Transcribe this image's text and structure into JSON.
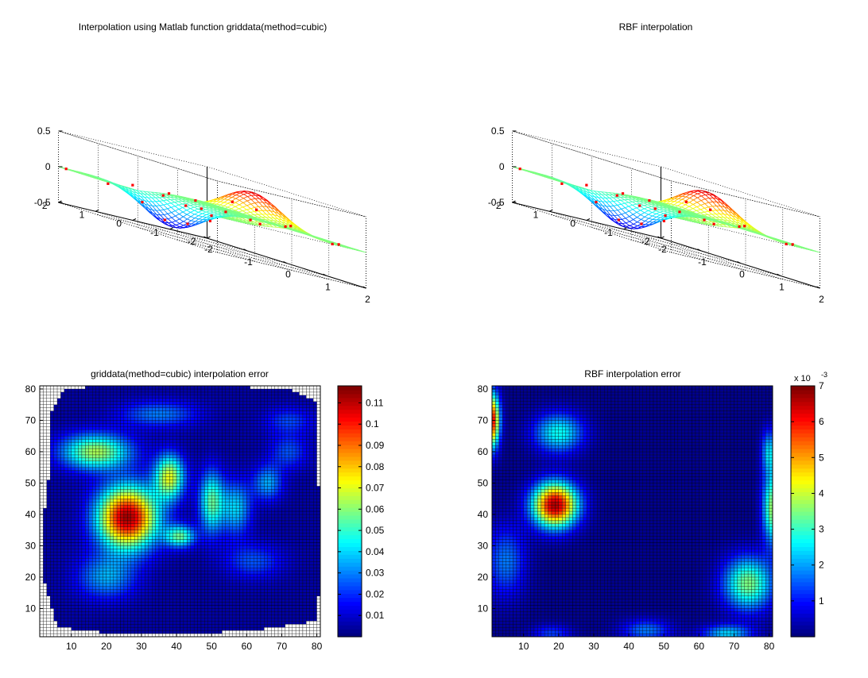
{
  "figure": {
    "background": "#ffffff",
    "colormap": "jet"
  },
  "chart_data": [
    {
      "id": "surf-cubic",
      "type": "surface3d",
      "title": "Interpolation using Matlab function griddata(method=cubic)",
      "x_ticks": [
        "-2",
        "-1",
        "0",
        "1",
        "2"
      ],
      "y_ticks": [
        "-2",
        "-1",
        "0",
        "1",
        "2"
      ],
      "z_ticks": [
        "-0.5",
        "0",
        "0.5"
      ],
      "xlim": [
        -2,
        2
      ],
      "ylim": [
        -2,
        2
      ],
      "zlim": [
        -0.5,
        0.5
      ],
      "grid": true,
      "function": "peak-valley",
      "peak": {
        "x": 1.0,
        "y": 0.0,
        "z": 0.42
      },
      "valley": {
        "x": -1.0,
        "y": 0.0,
        "z": -0.42
      },
      "sample_marker_color": "#ff0000",
      "samples": [
        {
          "x": -1.9,
          "y": 1.9,
          "z": 0.0
        },
        {
          "x": -1.5,
          "y": 1.2,
          "z": -0.05
        },
        {
          "x": -1.2,
          "y": 0.6,
          "z": -0.18
        },
        {
          "x": -0.6,
          "y": 1.5,
          "z": 0.05
        },
        {
          "x": -0.3,
          "y": 1.0,
          "z": 0.02
        },
        {
          "x": 0.5,
          "y": 1.7,
          "z": 0.1
        },
        {
          "x": 0.9,
          "y": 0.6,
          "z": 0.05
        },
        {
          "x": 1.3,
          "y": 0.2,
          "z": 0.2
        },
        {
          "x": 1.6,
          "y": -0.4,
          "z": 0.1
        },
        {
          "x": 1.0,
          "y": -0.9,
          "z": 0.05
        },
        {
          "x": 0.4,
          "y": -0.6,
          "z": 0.0
        },
        {
          "x": -0.3,
          "y": -0.3,
          "z": -0.1
        },
        {
          "x": -0.8,
          "y": -0.8,
          "z": -0.2
        },
        {
          "x": -1.1,
          "y": 0.1,
          "z": -0.35
        },
        {
          "x": -0.9,
          "y": -0.3,
          "z": -0.32
        },
        {
          "x": 0.1,
          "y": 0.4,
          "z": -0.02
        },
        {
          "x": 1.9,
          "y": -1.2,
          "z": 0.0
        },
        {
          "x": 1.5,
          "y": -1.8,
          "z": 0.0
        },
        {
          "x": 0.7,
          "y": 1.2,
          "z": 0.1
        },
        {
          "x": -0.2,
          "y": -1.5,
          "z": -0.05
        },
        {
          "x": 0.6,
          "y": 0.1,
          "z": 0.2
        },
        {
          "x": -1.6,
          "y": -1.0,
          "z": -0.1
        }
      ]
    },
    {
      "id": "surf-rbf",
      "type": "surface3d",
      "title": "RBF interpolation",
      "x_ticks": [
        "-2",
        "-1",
        "0",
        "1",
        "2"
      ],
      "y_ticks": [
        "-2",
        "-1",
        "0",
        "1",
        "2"
      ],
      "z_ticks": [
        "-0.5",
        "0",
        "0.5"
      ],
      "xlim": [
        -2,
        2
      ],
      "ylim": [
        -2,
        2
      ],
      "zlim": [
        -0.5,
        0.5
      ],
      "grid": true,
      "function": "peak-valley",
      "peak": {
        "x": 1.0,
        "y": 0.0,
        "z": 0.43
      },
      "valley": {
        "x": -1.0,
        "y": 0.0,
        "z": -0.43
      },
      "sample_marker_color": "#ff0000",
      "samples": [
        {
          "x": -1.9,
          "y": 1.9,
          "z": 0.0
        },
        {
          "x": -1.5,
          "y": 1.2,
          "z": -0.05
        },
        {
          "x": -1.2,
          "y": 0.6,
          "z": -0.18
        },
        {
          "x": -0.6,
          "y": 1.5,
          "z": 0.05
        },
        {
          "x": -0.3,
          "y": 1.0,
          "z": 0.02
        },
        {
          "x": 0.5,
          "y": 1.7,
          "z": 0.1
        },
        {
          "x": 0.9,
          "y": 0.6,
          "z": 0.05
        },
        {
          "x": 1.3,
          "y": 0.2,
          "z": 0.2
        },
        {
          "x": 1.6,
          "y": -0.4,
          "z": 0.1
        },
        {
          "x": 1.0,
          "y": -0.9,
          "z": 0.05
        },
        {
          "x": 0.4,
          "y": -0.6,
          "z": 0.0
        },
        {
          "x": -0.3,
          "y": -0.3,
          "z": -0.1
        },
        {
          "x": -0.8,
          "y": -0.8,
          "z": -0.2
        },
        {
          "x": -1.1,
          "y": 0.1,
          "z": -0.35
        },
        {
          "x": -0.9,
          "y": -0.3,
          "z": -0.32
        },
        {
          "x": 0.1,
          "y": 0.4,
          "z": -0.02
        },
        {
          "x": 1.9,
          "y": -1.2,
          "z": 0.0
        },
        {
          "x": 1.5,
          "y": -1.8,
          "z": 0.0
        },
        {
          "x": 0.7,
          "y": 1.2,
          "z": 0.1
        },
        {
          "x": -0.2,
          "y": -1.5,
          "z": -0.05
        },
        {
          "x": 0.6,
          "y": 0.1,
          "z": 0.2
        },
        {
          "x": -1.6,
          "y": -1.0,
          "z": -0.1
        }
      ]
    },
    {
      "id": "heat-cubic",
      "type": "heatmap",
      "title": "griddata(method=cubic) interpolation error",
      "grid_n": 81,
      "xlim": [
        1,
        81
      ],
      "ylim": [
        1,
        81
      ],
      "x_ticks": [
        "10",
        "20",
        "30",
        "40",
        "50",
        "60",
        "70",
        "80"
      ],
      "y_ticks": [
        "10",
        "20",
        "30",
        "40",
        "50",
        "60",
        "70",
        "80"
      ],
      "clim": [
        0,
        0.118
      ],
      "colorbar_ticks": [
        "0.01",
        "0.02",
        "0.03",
        "0.04",
        "0.05",
        "0.06",
        "0.07",
        "0.08",
        "0.09",
        "0.1",
        "0.11"
      ],
      "colorbar_exponent": null,
      "nan_outside_hull": true,
      "hull": [
        [
          6,
          4
        ],
        [
          22,
          2
        ],
        [
          45,
          2
        ],
        [
          62,
          3
        ],
        [
          80,
          6
        ],
        [
          81,
          22
        ],
        [
          80,
          76
        ],
        [
          72,
          80
        ],
        [
          50,
          81
        ],
        [
          20,
          81
        ],
        [
          8,
          80
        ],
        [
          4,
          72
        ],
        [
          4,
          55
        ],
        [
          2,
          38
        ],
        [
          2,
          20
        ]
      ],
      "blobs": [
        {
          "cx": 26,
          "cy": 39,
          "sx": 6,
          "sy": 7,
          "amp": 0.11
        },
        {
          "cx": 17,
          "cy": 60,
          "sx": 7,
          "sy": 4,
          "amp": 0.06
        },
        {
          "cx": 38,
          "cy": 52,
          "sx": 3,
          "sy": 5,
          "amp": 0.065
        },
        {
          "cx": 50,
          "cy": 44,
          "sx": 2.5,
          "sy": 7,
          "amp": 0.05
        },
        {
          "cx": 41,
          "cy": 33,
          "sx": 3,
          "sy": 2.5,
          "amp": 0.05
        },
        {
          "cx": 57,
          "cy": 42,
          "sx": 3,
          "sy": 6,
          "amp": 0.035
        },
        {
          "cx": 66,
          "cy": 50,
          "sx": 3,
          "sy": 4,
          "amp": 0.03
        },
        {
          "cx": 72,
          "cy": 60,
          "sx": 4,
          "sy": 4,
          "amp": 0.02
        },
        {
          "cx": 35,
          "cy": 72,
          "sx": 8,
          "sy": 3,
          "amp": 0.025
        },
        {
          "cx": 62,
          "cy": 25,
          "sx": 6,
          "sy": 4,
          "amp": 0.02
        },
        {
          "cx": 20,
          "cy": 20,
          "sx": 6,
          "sy": 5,
          "amp": 0.03
        },
        {
          "cx": 72,
          "cy": 70,
          "sx": 5,
          "sy": 3,
          "amp": 0.018
        }
      ],
      "base": 0.004
    },
    {
      "id": "heat-rbf",
      "type": "heatmap",
      "title": "RBF interpolation error",
      "grid_n": 81,
      "xlim": [
        1,
        81
      ],
      "ylim": [
        1,
        81
      ],
      "x_ticks": [
        "10",
        "20",
        "30",
        "40",
        "50",
        "60",
        "70",
        "80"
      ],
      "y_ticks": [
        "10",
        "20",
        "30",
        "40",
        "50",
        "60",
        "70",
        "80"
      ],
      "clim": [
        0,
        7
      ],
      "colorbar_ticks": [
        "1",
        "2",
        "3",
        "4",
        "5",
        "6",
        "7"
      ],
      "colorbar_exponent": {
        "base": "x 10",
        "exp": "-3"
      },
      "nan_outside_hull": false,
      "hull": [],
      "blobs": [
        {
          "cx": 19,
          "cy": 43,
          "sx": 4.5,
          "sy": 5,
          "amp": 6.6
        },
        {
          "cx": 1,
          "cy": 70,
          "sx": 1.5,
          "sy": 6,
          "amp": 6.2
        },
        {
          "cx": 20,
          "cy": 66,
          "sx": 5,
          "sy": 4.5,
          "amp": 2.6
        },
        {
          "cx": 74,
          "cy": 18,
          "sx": 5,
          "sy": 6,
          "amp": 3.4
        },
        {
          "cx": 81,
          "cy": 42,
          "sx": 2,
          "sy": 8,
          "amp": 3.6
        },
        {
          "cx": 80,
          "cy": 60,
          "sx": 1.5,
          "sy": 5,
          "amp": 2.2
        },
        {
          "cx": 45,
          "cy": 3,
          "sx": 5,
          "sy": 2.5,
          "amp": 1.6
        },
        {
          "cx": 68,
          "cy": 2,
          "sx": 5,
          "sy": 2,
          "amp": 2.2
        },
        {
          "cx": 5,
          "cy": 25,
          "sx": 4,
          "sy": 8,
          "amp": 1.6
        },
        {
          "cx": 18,
          "cy": 2,
          "sx": 4,
          "sy": 2,
          "amp": 1.2
        }
      ],
      "base": 0.1
    }
  ]
}
